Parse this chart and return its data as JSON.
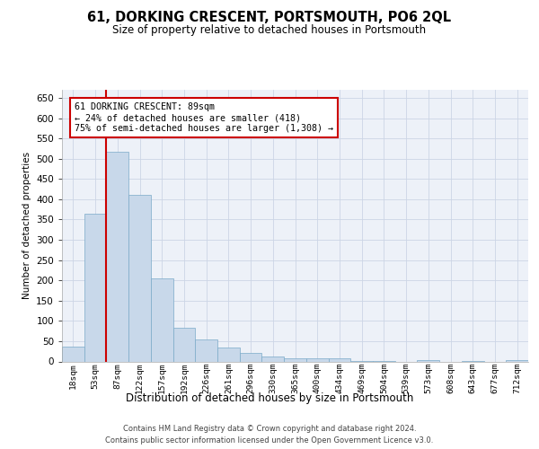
{
  "title": "61, DORKING CRESCENT, PORTSMOUTH, PO6 2QL",
  "subtitle": "Size of property relative to detached houses in Portsmouth",
  "xlabel": "Distribution of detached houses by size in Portsmouth",
  "ylabel": "Number of detached properties",
  "bar_color": "#c8d8ea",
  "bar_edge_color": "#7aaac8",
  "categories": [
    "18sqm",
    "53sqm",
    "87sqm",
    "122sqm",
    "157sqm",
    "192sqm",
    "226sqm",
    "261sqm",
    "296sqm",
    "330sqm",
    "365sqm",
    "400sqm",
    "434sqm",
    "469sqm",
    "504sqm",
    "539sqm",
    "573sqm",
    "608sqm",
    "643sqm",
    "677sqm",
    "712sqm"
  ],
  "values": [
    37,
    365,
    517,
    410,
    205,
    82,
    55,
    35,
    22,
    12,
    8,
    8,
    8,
    2,
    2,
    0,
    4,
    0,
    2,
    0,
    4
  ],
  "vline_x_index": 2,
  "vline_color": "#cc0000",
  "annotation_line1": "61 DORKING CRESCENT: 89sqm",
  "annotation_line2": "← 24% of detached houses are smaller (418)",
  "annotation_line3": "75% of semi-detached houses are larger (1,308) →",
  "ylim": [
    0,
    670
  ],
  "yticks": [
    0,
    50,
    100,
    150,
    200,
    250,
    300,
    350,
    400,
    450,
    500,
    550,
    600,
    650
  ],
  "grid_color": "#ccd5e5",
  "bg_color": "#edf1f8",
  "footer1": "Contains HM Land Registry data © Crown copyright and database right 2024.",
  "footer2": "Contains public sector information licensed under the Open Government Licence v3.0."
}
